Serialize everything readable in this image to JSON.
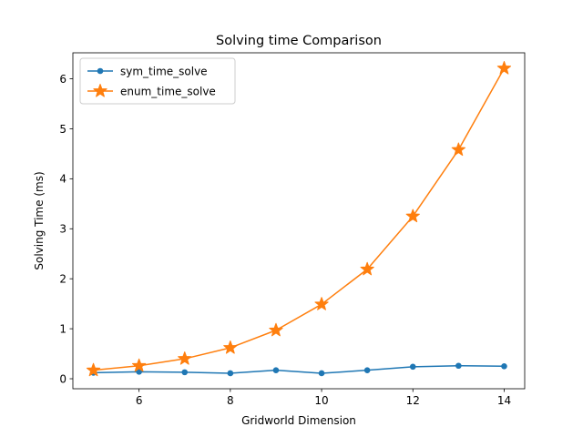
{
  "chart_data": {
    "type": "line",
    "title": "Solving time Comparison",
    "xlabel": "Gridworld Dimension",
    "ylabel": "Solving Time (ms)",
    "x": [
      5,
      6,
      7,
      8,
      9,
      10,
      11,
      12,
      13,
      14
    ],
    "xlim": [
      4.55,
      14.45
    ],
    "ylim": [
      -0.2,
      6.52
    ],
    "xticks": [
      6,
      8,
      10,
      12,
      14
    ],
    "yticks": [
      0,
      1,
      2,
      3,
      4,
      5,
      6
    ],
    "grid": false,
    "legend_position": "top-left",
    "series": [
      {
        "name": "sym_time_solve",
        "marker": "circle",
        "color": "#1f77b4",
        "values": [
          0.12,
          0.14,
          0.13,
          0.11,
          0.17,
          0.11,
          0.17,
          0.24,
          0.26,
          0.25
        ]
      },
      {
        "name": "enum_time_solve",
        "marker": "star",
        "color": "#ff7f0e",
        "values": [
          0.17,
          0.26,
          0.4,
          0.62,
          0.97,
          1.49,
          2.19,
          3.25,
          4.58,
          6.21
        ]
      }
    ]
  }
}
